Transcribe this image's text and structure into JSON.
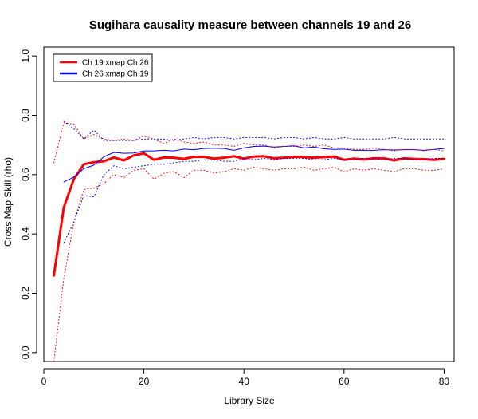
{
  "chart_data": {
    "type": "line",
    "title": "Sugihara causality measure between channels  19 and 26",
    "xlabel": "Library Size",
    "ylabel": "Cross Map Skill (rho)",
    "xlim": [
      0,
      82
    ],
    "ylim": [
      -0.03,
      1.03
    ],
    "xticks": [
      0,
      20,
      40,
      60,
      80
    ],
    "yticks": [
      0.0,
      0.2,
      0.4,
      0.6,
      0.8,
      1.0
    ],
    "xtick_labels": [
      "0",
      "20",
      "40",
      "60",
      "80"
    ],
    "ytick_labels": [
      "0.0",
      "0.2",
      "0.4",
      "0.6",
      "0.8",
      "1.0"
    ],
    "legend_position": "top-left",
    "grid": false,
    "colors": {
      "red": "#ff0000",
      "blue": "#0000ff"
    },
    "series": [
      {
        "name": "Ch 19 xmap Ch 26",
        "color": "#ff0000",
        "style": "thick",
        "in_legend": true,
        "x": [
          2,
          4,
          6,
          8,
          10,
          12,
          14,
          16,
          18,
          20,
          22,
          24,
          26,
          28,
          30,
          32,
          34,
          36,
          38,
          40,
          42,
          44,
          46,
          48,
          50,
          52,
          54,
          56,
          58,
          60,
          62,
          64,
          66,
          68,
          70,
          72,
          74,
          76,
          78,
          80
        ],
        "y": [
          0.26,
          0.49,
          0.585,
          0.635,
          0.642,
          0.645,
          0.658,
          0.648,
          0.665,
          0.672,
          0.65,
          0.658,
          0.657,
          0.653,
          0.66,
          0.66,
          0.654,
          0.657,
          0.662,
          0.654,
          0.661,
          0.662,
          0.655,
          0.657,
          0.66,
          0.659,
          0.657,
          0.659,
          0.661,
          0.65,
          0.654,
          0.651,
          0.655,
          0.655,
          0.648,
          0.655,
          0.653,
          0.652,
          0.65,
          0.653
        ]
      },
      {
        "name": "Ch 26  xmap Ch 19",
        "color": "#0000ff",
        "style": "thin",
        "in_legend": true,
        "x": [
          4,
          6,
          8,
          10,
          12,
          14,
          16,
          18,
          20,
          22,
          24,
          26,
          28,
          30,
          32,
          34,
          36,
          38,
          40,
          42,
          44,
          46,
          48,
          50,
          52,
          54,
          56,
          58,
          60,
          62,
          64,
          66,
          68,
          70,
          72,
          74,
          76,
          78,
          80
        ],
        "y": [
          0.575,
          0.592,
          0.62,
          0.632,
          0.66,
          0.675,
          0.672,
          0.673,
          0.68,
          0.68,
          0.682,
          0.68,
          0.686,
          0.684,
          0.688,
          0.689,
          0.688,
          0.682,
          0.69,
          0.695,
          0.696,
          0.693,
          0.695,
          0.697,
          0.69,
          0.693,
          0.687,
          0.685,
          0.686,
          0.682,
          0.682,
          0.682,
          0.684,
          0.683,
          0.684,
          0.684,
          0.682,
          0.685,
          0.688
        ]
      },
      {
        "name": "red upper bound",
        "color": "#ff0000",
        "style": "dotted",
        "in_legend": false,
        "x": [
          2,
          4,
          6,
          8,
          10,
          12,
          14,
          16,
          18,
          20,
          22,
          24,
          26,
          28,
          30,
          32,
          34,
          36,
          38,
          40,
          42,
          44,
          46,
          48,
          50,
          52,
          54,
          56,
          58,
          60,
          62,
          64,
          66,
          68,
          70,
          72,
          74,
          76,
          78,
          80
        ],
        "y": [
          0.64,
          0.775,
          0.77,
          0.72,
          0.735,
          0.72,
          0.715,
          0.72,
          0.715,
          0.73,
          0.72,
          0.705,
          0.72,
          0.71,
          0.705,
          0.71,
          0.7,
          0.7,
          0.695,
          0.705,
          0.7,
          0.7,
          0.69,
          0.695,
          0.695,
          0.7,
          0.695,
          0.7,
          0.69,
          0.69,
          0.685,
          0.685,
          0.69,
          0.685,
          0.68,
          0.685,
          0.685,
          0.68,
          0.685,
          0.68
        ]
      },
      {
        "name": "red lower bound",
        "color": "#ff0000",
        "style": "dotted",
        "in_legend": false,
        "x": [
          2,
          4,
          6,
          8,
          10,
          12,
          14,
          16,
          18,
          20,
          22,
          24,
          26,
          28,
          30,
          32,
          34,
          36,
          38,
          40,
          42,
          44,
          46,
          48,
          50,
          52,
          54,
          56,
          58,
          60,
          62,
          64,
          66,
          68,
          70,
          72,
          74,
          76,
          78,
          80
        ],
        "y": [
          -0.03,
          0.25,
          0.44,
          0.55,
          0.555,
          0.57,
          0.6,
          0.59,
          0.615,
          0.62,
          0.585,
          0.605,
          0.61,
          0.59,
          0.615,
          0.615,
          0.605,
          0.61,
          0.62,
          0.615,
          0.625,
          0.62,
          0.615,
          0.62,
          0.62,
          0.625,
          0.615,
          0.62,
          0.625,
          0.61,
          0.62,
          0.615,
          0.62,
          0.615,
          0.61,
          0.62,
          0.62,
          0.615,
          0.615,
          0.62
        ]
      },
      {
        "name": "blue upper bound",
        "color": "#0000ff",
        "style": "dotted",
        "in_legend": false,
        "x": [
          4,
          6,
          8,
          10,
          12,
          14,
          16,
          18,
          20,
          22,
          24,
          26,
          28,
          30,
          32,
          34,
          36,
          38,
          40,
          42,
          44,
          46,
          48,
          50,
          52,
          54,
          56,
          58,
          60,
          62,
          64,
          66,
          68,
          70,
          72,
          74,
          76,
          78,
          80
        ],
        "y": [
          0.78,
          0.755,
          0.72,
          0.75,
          0.715,
          0.715,
          0.715,
          0.715,
          0.72,
          0.72,
          0.72,
          0.715,
          0.72,
          0.725,
          0.72,
          0.725,
          0.725,
          0.72,
          0.725,
          0.725,
          0.725,
          0.72,
          0.725,
          0.725,
          0.72,
          0.725,
          0.72,
          0.72,
          0.725,
          0.72,
          0.72,
          0.72,
          0.72,
          0.725,
          0.72,
          0.72,
          0.72,
          0.72,
          0.72
        ]
      },
      {
        "name": "blue lower bound",
        "color": "#0000ff",
        "style": "dotted",
        "in_legend": false,
        "x": [
          4,
          6,
          8,
          10,
          12,
          14,
          16,
          18,
          20,
          22,
          24,
          26,
          28,
          30,
          32,
          34,
          36,
          38,
          40,
          42,
          44,
          46,
          48,
          50,
          52,
          54,
          56,
          58,
          60,
          62,
          64,
          66,
          68,
          70,
          72,
          74,
          76,
          78,
          80
        ],
        "y": [
          0.37,
          0.44,
          0.53,
          0.525,
          0.6,
          0.63,
          0.62,
          0.625,
          0.63,
          0.635,
          0.635,
          0.64,
          0.645,
          0.645,
          0.65,
          0.65,
          0.645,
          0.645,
          0.655,
          0.65,
          0.655,
          0.65,
          0.655,
          0.655,
          0.655,
          0.65,
          0.65,
          0.655,
          0.65,
          0.65,
          0.655,
          0.655,
          0.65,
          0.655,
          0.655,
          0.65,
          0.65,
          0.655,
          0.655
        ]
      }
    ]
  }
}
